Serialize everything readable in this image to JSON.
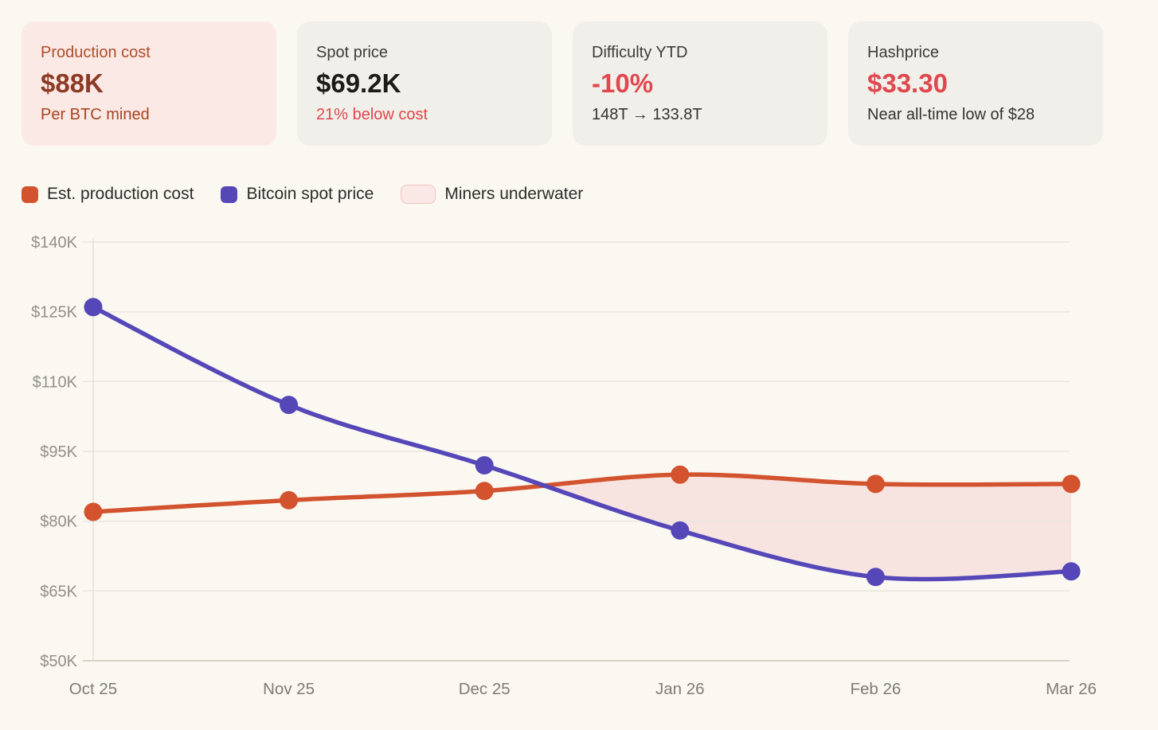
{
  "page": {
    "background": "#faf8f1",
    "accent_red": "#e0474f",
    "accent_orange": "#d2532e",
    "accent_blue": "#5547b8",
    "underwater_pink": "#f7e3e0"
  },
  "stats": [
    {
      "title": "Production cost",
      "value": "$88K",
      "subtitle": "Per BTC mined",
      "highlight": true,
      "title_color": "#ad4e2c",
      "value_color": "#8c3a25",
      "subtitle_color": "#a64420",
      "bg": "#fbe9e5"
    },
    {
      "title": "Spot price",
      "value": "$69.2K",
      "subtitle": "21% below cost",
      "title_color": "#3c3b36",
      "value_color": "#1b1b18",
      "subtitle_color": "#e0474f",
      "bg": "#f1efe9"
    },
    {
      "title": "Difficulty YTD",
      "value": "-10%",
      "subtitle": "148T → 133.8T",
      "title_color": "#3c3b36",
      "value_color": "#e0474f",
      "subtitle_color": "#33332e",
      "bg": "#f1efe9"
    },
    {
      "title": "Hashprice",
      "value": "$33.30",
      "subtitle": "Near all-time low of $28",
      "title_color": "#3c3b36",
      "value_color": "#e0474f",
      "subtitle_color": "#33332e",
      "bg": "#f1efe9"
    }
  ],
  "legend": [
    {
      "label": "Est. production cost",
      "swatch_color": "#d2532e",
      "swatch_type": "square"
    },
    {
      "label": "Bitcoin spot price",
      "swatch_color": "#5547b8",
      "swatch_type": "square"
    },
    {
      "label": "Miners underwater",
      "swatch_color": "#fae8e6",
      "swatch_border": "#eec2bc",
      "swatch_type": "pill"
    }
  ],
  "chart_data": {
    "type": "line",
    "unit": "USD thousands per BTC",
    "x": [
      "Oct 25",
      "Nov 25",
      "Dec 25",
      "Jan 26",
      "Feb 26",
      "Mar 26"
    ],
    "series": [
      {
        "name": "Est. production cost",
        "color": "#d2532e",
        "values": [
          82,
          84.5,
          86.5,
          90,
          88,
          88
        ]
      },
      {
        "name": "Bitcoin spot price",
        "color": "#5547b8",
        "values": [
          126,
          105,
          92,
          78,
          68,
          69.2
        ]
      }
    ],
    "underwater": {
      "label": "Miners underwater",
      "color": "#f7e3e0",
      "description": "area between lines where spot price is below production cost"
    },
    "ylim": [
      50,
      140
    ],
    "yticks": [
      50,
      65,
      80,
      95,
      110,
      125,
      140
    ],
    "ytick_labels": [
      "$50K",
      "$65K",
      "$80K",
      "$95K",
      "$110K",
      "$125K",
      "$140K"
    ],
    "grid": true,
    "legend_position": "top",
    "marker": "circle",
    "smooth": true
  }
}
